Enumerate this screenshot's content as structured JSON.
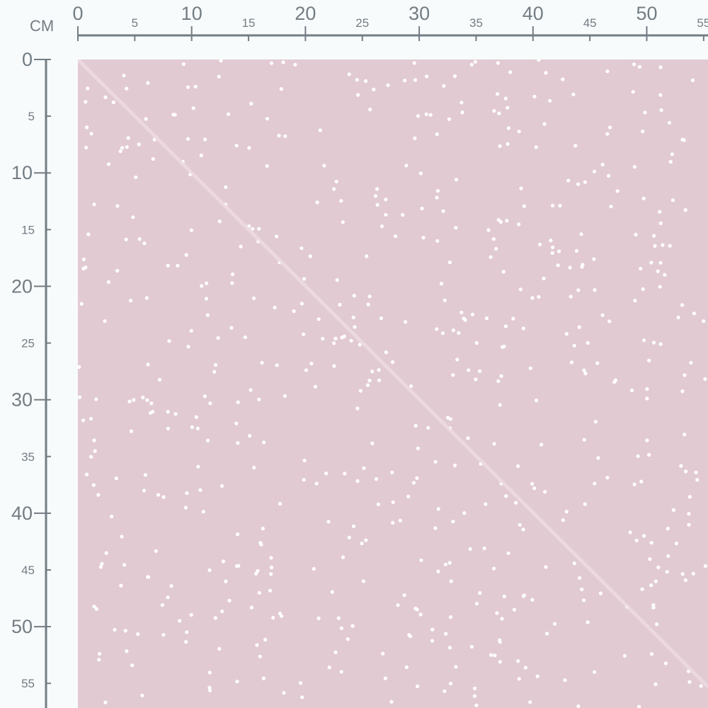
{
  "unit_label": "CM",
  "top_ruler": {
    "major_labels": [
      "0",
      "10",
      "20",
      "30",
      "40",
      "50"
    ],
    "minor_labels": [
      "5",
      "15",
      "25",
      "35",
      "45",
      "55"
    ]
  },
  "left_ruler": {
    "major_labels": [
      "0",
      "10",
      "20",
      "30",
      "40",
      "50"
    ],
    "minor_labels": [
      "5",
      "15",
      "25",
      "35",
      "45",
      "55"
    ]
  },
  "colors": {
    "fabric": "#e2cad2",
    "dots": "#ffffff",
    "ruler": "#737d83",
    "background": "#f8fbfc"
  },
  "pattern": "white-polka-dots"
}
